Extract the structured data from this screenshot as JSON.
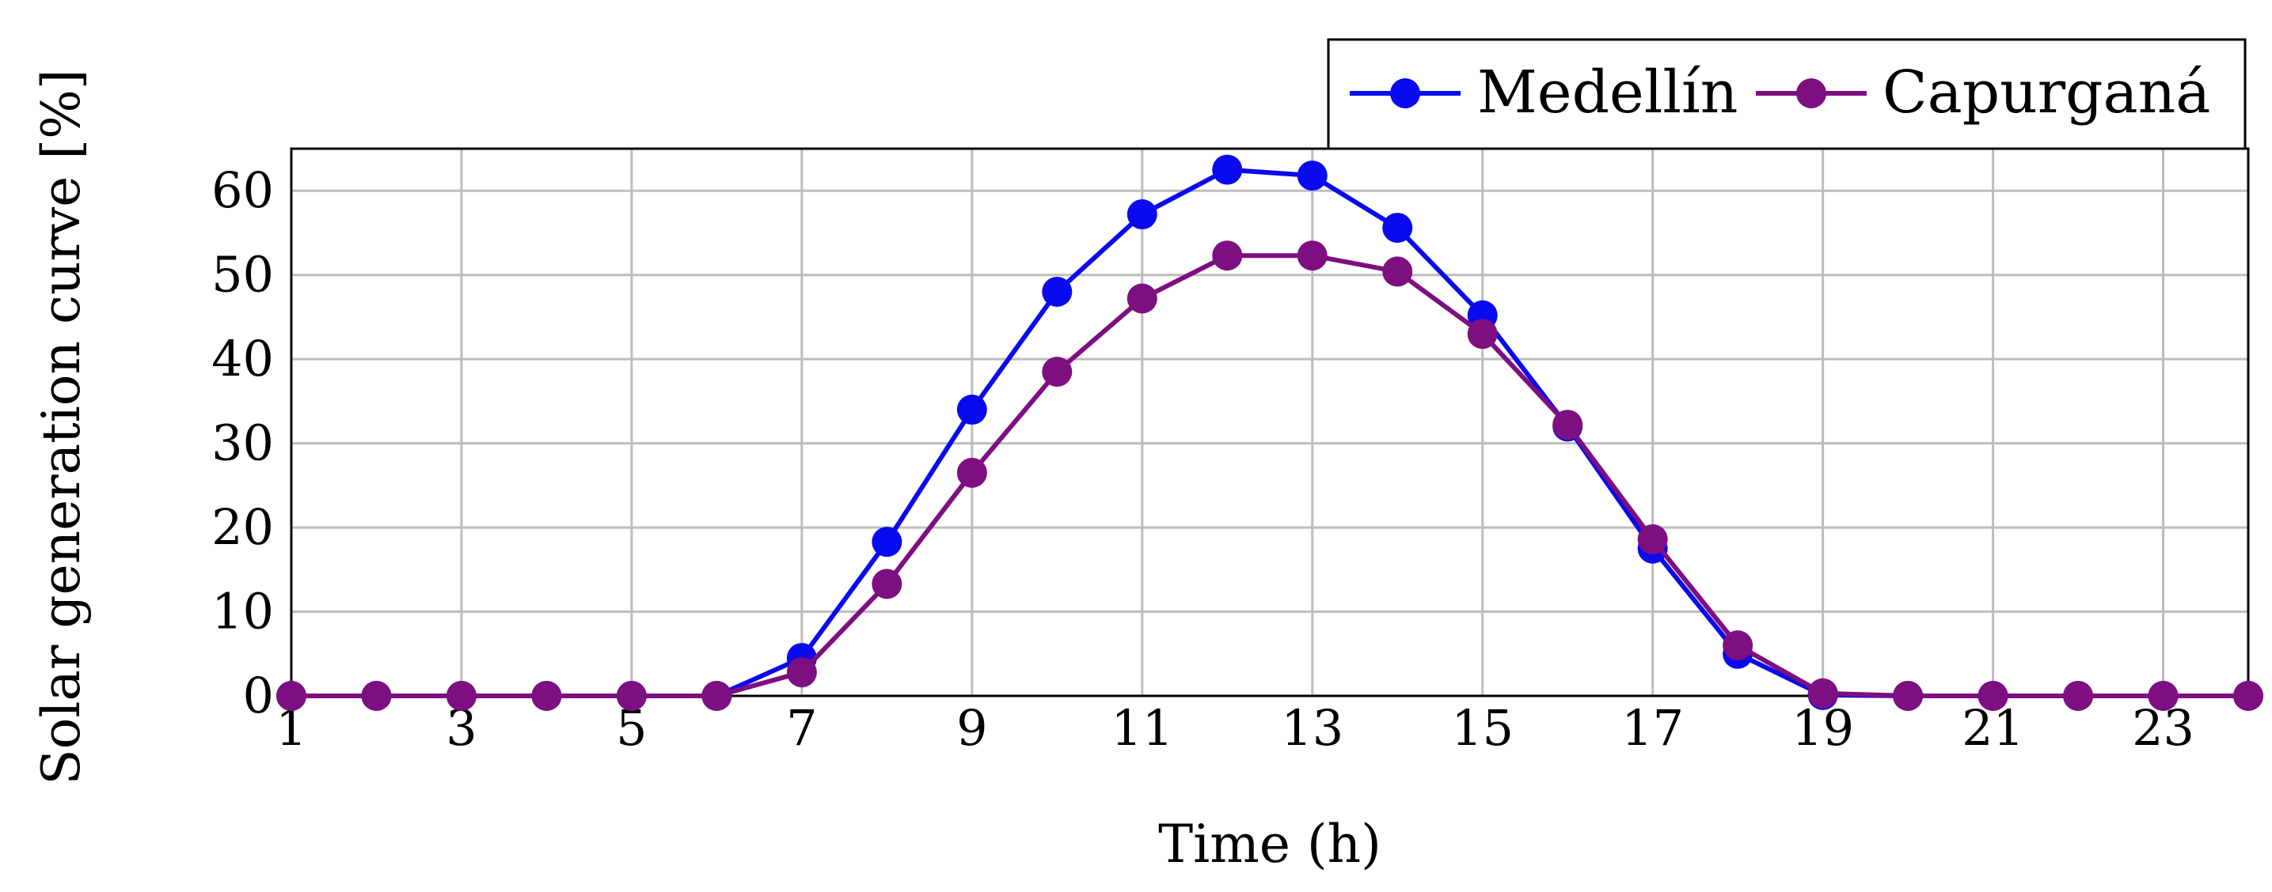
{
  "chart_data": {
    "type": "line",
    "xlabel": "Time (h)",
    "ylabel": "Solar generation curve [%]",
    "xlim": [
      1,
      24
    ],
    "ylim": [
      0,
      65
    ],
    "xticks": [
      "1",
      "3",
      "5",
      "7",
      "9",
      "11",
      "13",
      "15",
      "17",
      "19",
      "21",
      "23"
    ],
    "yticks": [
      "0",
      "10",
      "20",
      "30",
      "40",
      "50",
      "60"
    ],
    "grid": true,
    "legend_position": "top-right",
    "x": [
      1,
      2,
      3,
      4,
      5,
      6,
      7,
      8,
      9,
      10,
      11,
      12,
      13,
      14,
      15,
      16,
      17,
      18,
      19,
      20,
      21,
      22,
      23,
      24
    ],
    "series": [
      {
        "name": "Medellín",
        "color": "#0a0aee",
        "values": [
          0,
          0,
          0,
          0,
          0,
          0,
          4.5,
          18.3,
          34,
          48,
          57.2,
          62.5,
          61.8,
          55.6,
          45.2,
          32,
          17.5,
          5,
          0.1,
          0,
          0,
          0,
          0,
          0
        ]
      },
      {
        "name": "Capurganá",
        "color": "#7d0f80",
        "values": [
          0,
          0,
          0,
          0,
          0,
          0,
          2.8,
          13.3,
          26.5,
          38.5,
          47.2,
          52.3,
          52.3,
          50.4,
          43,
          32.2,
          18.6,
          6,
          0.3,
          0,
          0,
          0,
          0,
          0
        ]
      }
    ]
  }
}
